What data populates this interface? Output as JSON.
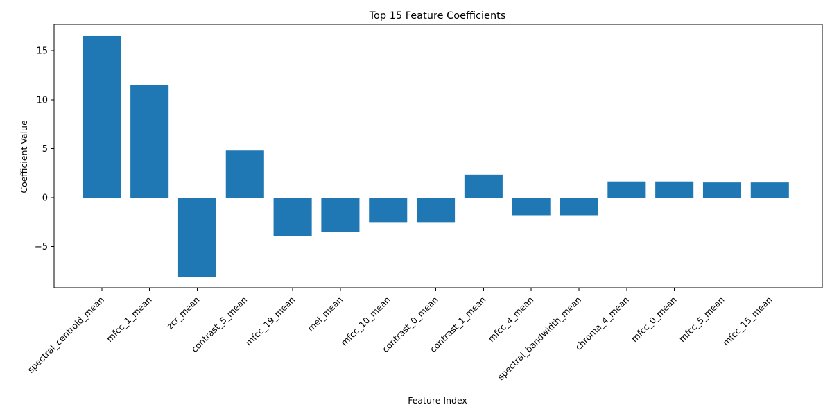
{
  "chart_data": {
    "type": "bar",
    "title": "Top 15 Feature Coefficients",
    "xlabel": "Feature Index",
    "ylabel": "Coefficient Value",
    "categories": [
      "spectral_centroid_mean",
      "mfcc_1_mean",
      "zcr_mean",
      "contrast_5_mean",
      "mfcc_19_mean",
      "mel_mean",
      "mfcc_10_mean",
      "contrast_0_mean",
      "contrast_1_mean",
      "mfcc_4_mean",
      "spectral_bandwidth_mean",
      "chroma_4_mean",
      "mfcc_0_mean",
      "mfcc_5_mean",
      "mfcc_15_mean"
    ],
    "values": [
      16.5,
      11.5,
      -8.1,
      4.8,
      -3.9,
      -3.5,
      -2.5,
      -2.5,
      2.35,
      -1.8,
      -1.8,
      1.65,
      1.65,
      1.55,
      1.55
    ],
    "ylim": [
      -9.2,
      17.7
    ],
    "yticks": [
      -5,
      0,
      5,
      10,
      15
    ],
    "ytick_labels": [
      "−5",
      "0",
      "5",
      "10",
      "15"
    ],
    "grid": false,
    "bar_color": "#1f77b4"
  }
}
